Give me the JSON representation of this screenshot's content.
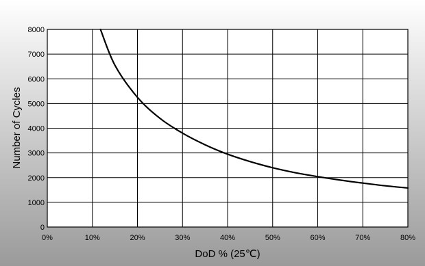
{
  "chart_data": {
    "type": "line",
    "title": "",
    "xlabel": "DoD % (25℃)",
    "ylabel": "Number of Cycles",
    "xlim": [
      0,
      80
    ],
    "ylim": [
      0,
      8000
    ],
    "x_ticks": [
      0,
      10,
      20,
      30,
      40,
      50,
      60,
      70,
      80
    ],
    "x_tick_labels": [
      "0%",
      "10%",
      "20%",
      "30%",
      "40%",
      "50%",
      "60%",
      "70%",
      "80%"
    ],
    "y_ticks": [
      0,
      1000,
      2000,
      3000,
      4000,
      5000,
      6000,
      7000,
      8000
    ],
    "y_tick_labels": [
      "0",
      "1000",
      "2000",
      "3000",
      "4000",
      "5000",
      "6000",
      "7000",
      "8000"
    ],
    "grid": true,
    "legend": "none",
    "series": [
      {
        "x": [
          11.8,
          15,
          20,
          25,
          30,
          35,
          40,
          45,
          50,
          55,
          60,
          65,
          70,
          75,
          80
        ],
        "y": [
          8000,
          6550,
          5250,
          4400,
          3800,
          3330,
          2950,
          2650,
          2400,
          2200,
          2040,
          1900,
          1780,
          1670,
          1580
        ],
        "color": "#000000"
      }
    ],
    "background": {
      "gradient_top": "#FFFFFF",
      "gradient_bottom": "#9A9A9A"
    }
  }
}
